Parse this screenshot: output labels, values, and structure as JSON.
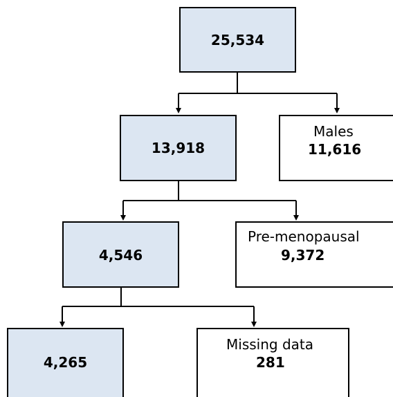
{
  "flowchart": {
    "total": "25,534",
    "females": "13,918",
    "males_label": "Males",
    "males_count": "11,616",
    "postmenopausal": "4,546",
    "premenopausal_label": "Pre-menopausal",
    "premenopausal_count": "9,372",
    "final": "4,265",
    "missing_label": "Missing data",
    "missing_count": "281",
    "fill_color": "#dce6f2",
    "line_color": "#000000"
  }
}
